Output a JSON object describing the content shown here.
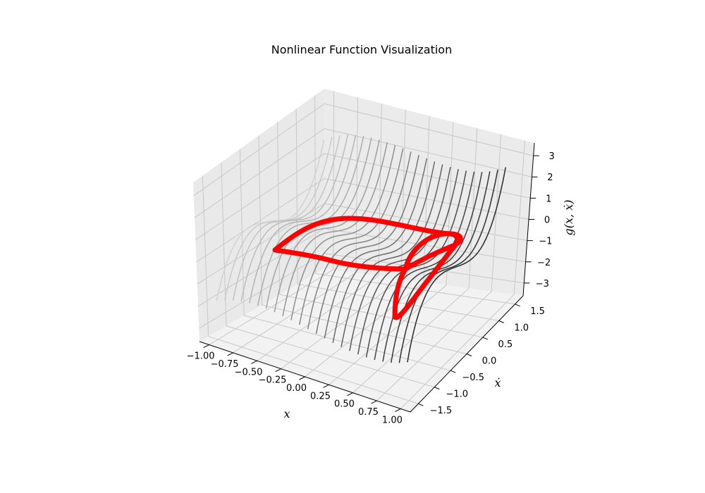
{
  "chart_data": {
    "type": "3d-contour-line",
    "title": "Nonlinear Function Visualization",
    "xlabel": "x",
    "ylabel": "ẋ",
    "zlabel": "g(x, ẋ)",
    "x_ticks": [
      "−1.00",
      "−0.75",
      "−0.50",
      "−0.25",
      "0.00",
      "0.25",
      "0.50",
      "0.75",
      "1.00"
    ],
    "y_ticks": [
      "−1.5",
      "−1.0",
      "−0.5",
      "0.0",
      "0.5",
      "1.0",
      "1.5"
    ],
    "z_ticks": [
      "−3",
      "−2",
      "−1",
      "0",
      "1",
      "2",
      "3"
    ],
    "x_values": [
      -1.0,
      -0.75,
      -0.5,
      -0.25,
      0.0,
      0.25,
      0.5,
      0.75,
      1.0
    ],
    "y_values": [
      -1.5,
      -1.0,
      -0.5,
      0.0,
      0.5,
      1.0,
      1.5
    ],
    "z_values": [
      -3,
      -2,
      -1,
      0,
      1,
      2,
      3
    ],
    "xlim": [
      -1.1,
      1.1
    ],
    "ylim": [
      -1.75,
      1.75
    ],
    "zlim": [
      -3.6,
      3.6
    ],
    "surface_function": "g(x, ẋ) = x^3 + ẋ^3 - x - ẋ (approximate)",
    "contour_colormap": "gray (light to dark with increasing x)",
    "trajectory_color": "#ff0000",
    "grid": true,
    "legend": "none"
  }
}
